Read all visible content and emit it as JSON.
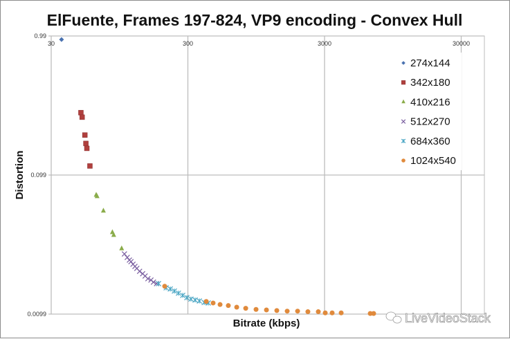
{
  "chart_data": {
    "type": "scatter",
    "title": "ElFuente, Frames 197-824, VP9 encoding - Convex Hull",
    "xlabel": "Bitrate (kbps)",
    "ylabel": "Distortion",
    "xscale": "log",
    "yscale": "log",
    "xlim": [
      30,
      45000
    ],
    "ylim": [
      0.0099,
      0.99
    ],
    "xticks": [
      30,
      300,
      3000,
      30000
    ],
    "xtick_labels": [
      "30",
      "300",
      "3000",
      "30000"
    ],
    "yticks": [
      0.99,
      0.099,
      0.0099
    ],
    "ytick_labels": [
      "0.99",
      "0.099",
      "0.0099"
    ],
    "grid": true,
    "legend_position": "right",
    "watermark": "LiveVideoStack",
    "series": [
      {
        "name": "274x144",
        "marker": "diamond",
        "color": "#4a72b0",
        "points": [
          [
            35.7,
            0.934
          ]
        ]
      },
      {
        "name": "342x180",
        "marker": "square",
        "color": "#b0403e",
        "points": [
          [
            49.5,
            0.278
          ],
          [
            50.5,
            0.258
          ],
          [
            52.9,
            0.192
          ],
          [
            53.8,
            0.167
          ],
          [
            54.7,
            0.154
          ],
          [
            57.6,
            0.115
          ]
        ]
      },
      {
        "name": "410x216",
        "marker": "triangle",
        "color": "#8aac4a",
        "points": [
          [
            64,
            0.0711
          ],
          [
            65,
            0.0695
          ],
          [
            72.3,
            0.0547
          ],
          [
            84.1,
            0.0383
          ],
          [
            86,
            0.0366
          ],
          [
            98.3,
            0.0293
          ]
        ]
      },
      {
        "name": "512x270",
        "marker": "x",
        "color": "#7a5fa0",
        "points": [
          [
            103,
            0.0268
          ],
          [
            108,
            0.0253
          ],
          [
            112,
            0.0242
          ],
          [
            115,
            0.0236
          ],
          [
            119,
            0.0226
          ],
          [
            123,
            0.0218
          ],
          [
            127,
            0.0211
          ],
          [
            133,
            0.0201
          ],
          [
            140,
            0.0193
          ],
          [
            146,
            0.0186
          ],
          [
            153,
            0.0178
          ],
          [
            161,
            0.0174
          ],
          [
            168,
            0.0168
          ],
          [
            177,
            0.0164
          ]
        ]
      },
      {
        "name": "684x360",
        "marker": "star",
        "color": "#4aa6c4",
        "points": [
          [
            183,
            0.0164
          ],
          [
            208,
            0.0153
          ],
          [
            223,
            0.015
          ],
          [
            239,
            0.0145
          ],
          [
            256,
            0.014
          ],
          [
            275,
            0.0135
          ],
          [
            295,
            0.013
          ],
          [
            316,
            0.0127
          ],
          [
            339,
            0.0125
          ],
          [
            364,
            0.0123
          ],
          [
            395,
            0.012
          ],
          [
            423,
            0.0119
          ]
        ]
      },
      {
        "name": "1024x540",
        "marker": "circle",
        "color": "#e08a3c",
        "points": [
          [
            203,
            0.0157
          ],
          [
            409,
            0.0122
          ],
          [
            459,
            0.0119
          ],
          [
            516,
            0.0116
          ],
          [
            593,
            0.0114
          ],
          [
            683,
            0.0111
          ],
          [
            795,
            0.0109
          ],
          [
            946,
            0.0107
          ],
          [
            1127,
            0.0106
          ],
          [
            1342,
            0.0105
          ],
          [
            1599,
            0.0104
          ],
          [
            1905,
            0.0104
          ],
          [
            2266,
            0.0103
          ],
          [
            2700,
            0.0103
          ],
          [
            3035,
            0.0101
          ],
          [
            3410,
            0.0101
          ],
          [
            3970,
            0.0101
          ],
          [
            6480,
            0.01
          ],
          [
            6860,
            0.01
          ]
        ]
      }
    ]
  }
}
